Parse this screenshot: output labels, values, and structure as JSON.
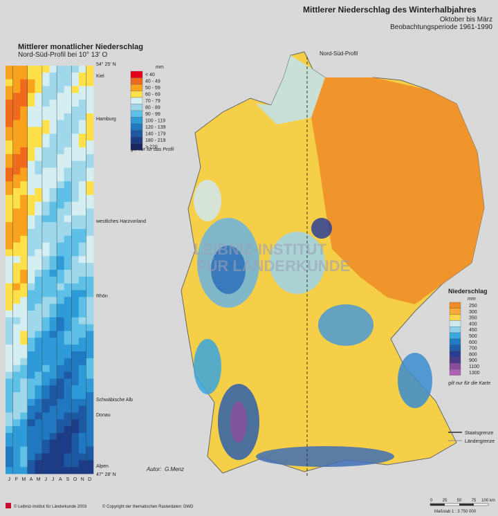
{
  "header": {
    "title": "Mittlerer Niederschlag des Winterhalbjahres",
    "subtitle": "Oktober bis März",
    "period": "Beobachtungsperiode 1961-1990"
  },
  "profile": {
    "title": "Mittlerer monatlicher Niederschlag",
    "subtitle": "Nord-Süd-Profil bei 10° 13' O",
    "top": "54° 25' N",
    "bottom": "47° 28' N",
    "places": [
      "Kiel",
      "Hamburg",
      "westliches Harzvorland",
      "Rhön",
      "Schwäbische Alb",
      "Donau",
      "Alpen"
    ],
    "months": [
      "J",
      "F",
      "M",
      "A",
      "M",
      "J",
      "J",
      "A",
      "S",
      "O",
      "N",
      "D"
    ]
  },
  "profile_legend": {
    "unit": "mm",
    "classes": [
      "< 40",
      "40 - 49",
      "50 - 59",
      "60 - 69",
      "70 - 79",
      "80 - 89",
      "90 - 99",
      "100 - 119",
      "120 - 139",
      "140 - 179",
      "180 - 219",
      "> 220"
    ],
    "note": "gilt nur für das Profil"
  },
  "map": {
    "profile_line": "Nord-Süd-Profil",
    "watermark": [
      "LEIBNIZ-INSTITUT",
      "FÜR LÄNDERKUNDE"
    ],
    "author_label": "Autor:",
    "author": "G.Menz",
    "state_border": "Staatsgrenze",
    "land_border": "Ländergrenze"
  },
  "map_legend": {
    "title": "Niederschlag",
    "unit": "mm",
    "classes": [
      "250",
      "300",
      "350",
      "400",
      "450",
      "500",
      "600",
      "700",
      "800",
      "900",
      "1100",
      "1300"
    ],
    "note": "gilt nur für die Karte"
  },
  "scale": {
    "ticks": [
      "0",
      "25",
      "50",
      "75",
      "100 km"
    ],
    "label": "Maßstab 1 : 3 750 000"
  },
  "footer": {
    "left": "© Leibniz-Institut für Länderkunde 2003",
    "right": "© Copyright der thematischen Rasterdaten: DWD"
  }
}
